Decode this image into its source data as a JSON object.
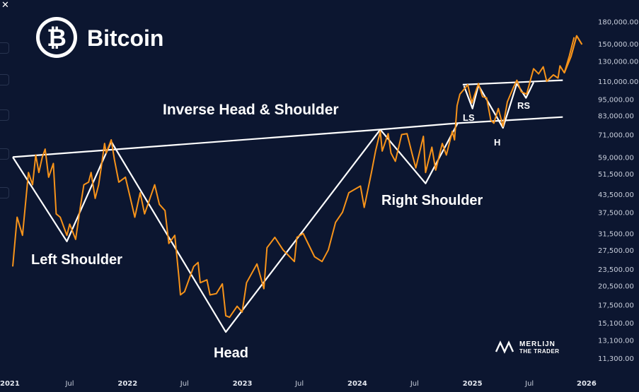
{
  "chart_data": {
    "type": "line",
    "title": "Bitcoin",
    "y_scale": "log",
    "ylim": [
      10000,
      205000
    ],
    "y_ticks": [
      "180,000.00",
      "150,000.00",
      "130,000.00",
      "110,000.00",
      "95,000.00",
      "83,000.00",
      "71,000.00",
      "59,000.00",
      "51,500.00",
      "43,500.00",
      "37,500.00",
      "31,500.00",
      "27,500.00",
      "23,500.00",
      "20,500.00",
      "17,500.00",
      "15,100.00",
      "13,100.00",
      "11,300.00"
    ],
    "y_tick_values": [
      180000,
      150000,
      130000,
      110000,
      95000,
      83000,
      71000,
      59000,
      51500,
      43500,
      37500,
      31500,
      27500,
      23500,
      20500,
      17500,
      15100,
      13100,
      11300
    ],
    "x_ticks": [
      {
        "label": "2021",
        "date": "2021-01-01",
        "major": true
      },
      {
        "label": "Jul",
        "date": "2021-07-01",
        "major": false
      },
      {
        "label": "2022",
        "date": "2022-01-01",
        "major": true
      },
      {
        "label": "Jul",
        "date": "2022-07-01",
        "major": false
      },
      {
        "label": "2023",
        "date": "2023-01-01",
        "major": true
      },
      {
        "label": "Jul",
        "date": "2023-07-01",
        "major": false
      },
      {
        "label": "2024",
        "date": "2024-01-01",
        "major": true
      },
      {
        "label": "Jul",
        "date": "2024-07-01",
        "major": false
      },
      {
        "label": "2025",
        "date": "2025-01-01",
        "major": true
      },
      {
        "label": "Jul",
        "date": "2025-07-01",
        "major": false
      },
      {
        "label": "2026",
        "date": "2026-01-01",
        "major": true
      }
    ],
    "series": [
      {
        "color": "#f7931a",
        "points": [
          [
            "2021-01-01",
            24000
          ],
          [
            "2021-01-15",
            36000
          ],
          [
            "2021-02-01",
            31000
          ],
          [
            "2021-02-20",
            52000
          ],
          [
            "2021-03-05",
            47000
          ],
          [
            "2021-03-15",
            60000
          ],
          [
            "2021-03-25",
            52000
          ],
          [
            "2021-04-05",
            59000
          ],
          [
            "2021-04-14",
            63000
          ],
          [
            "2021-04-25",
            50000
          ],
          [
            "2021-05-10",
            56000
          ],
          [
            "2021-05-19",
            37000
          ],
          [
            "2021-06-01",
            36000
          ],
          [
            "2021-06-22",
            31000
          ],
          [
            "2021-07-01",
            34000
          ],
          [
            "2021-07-20",
            30000
          ],
          [
            "2021-08-05",
            40000
          ],
          [
            "2021-08-15",
            47000
          ],
          [
            "2021-08-30",
            48000
          ],
          [
            "2021-09-07",
            52000
          ],
          [
            "2021-09-20",
            42000
          ],
          [
            "2021-10-01",
            47000
          ],
          [
            "2021-10-10",
            55000
          ],
          [
            "2021-10-20",
            66000
          ],
          [
            "2021-10-25",
            61000
          ],
          [
            "2021-11-10",
            68000
          ],
          [
            "2021-11-20",
            58000
          ],
          [
            "2021-12-04",
            48000
          ],
          [
            "2021-12-25",
            50000
          ],
          [
            "2022-01-10",
            42000
          ],
          [
            "2022-01-24",
            36000
          ],
          [
            "2022-02-10",
            44000
          ],
          [
            "2022-02-24",
            37000
          ],
          [
            "2022-03-28",
            47000
          ],
          [
            "2022-04-12",
            40000
          ],
          [
            "2022-04-30",
            38000
          ],
          [
            "2022-05-12",
            29000
          ],
          [
            "2022-05-31",
            31000
          ],
          [
            "2022-06-13",
            22000
          ],
          [
            "2022-06-18",
            19000
          ],
          [
            "2022-07-01",
            19500
          ],
          [
            "2022-07-30",
            24000
          ],
          [
            "2022-08-13",
            24800
          ],
          [
            "2022-08-20",
            21000
          ],
          [
            "2022-09-10",
            21500
          ],
          [
            "2022-09-20",
            19000
          ],
          [
            "2022-10-10",
            19200
          ],
          [
            "2022-10-29",
            20800
          ],
          [
            "2022-11-09",
            16000
          ],
          [
            "2022-11-21",
            15800
          ],
          [
            "2022-12-15",
            17300
          ],
          [
            "2022-12-31",
            16500
          ],
          [
            "2023-01-14",
            21000
          ],
          [
            "2023-02-16",
            24500
          ],
          [
            "2023-03-10",
            20000
          ],
          [
            "2023-03-20",
            28000
          ],
          [
            "2023-04-14",
            30500
          ],
          [
            "2023-05-10",
            27500
          ],
          [
            "2023-06-15",
            25000
          ],
          [
            "2023-06-23",
            30500
          ],
          [
            "2023-07-13",
            31500
          ],
          [
            "2023-08-18",
            26000
          ],
          [
            "2023-09-11",
            25000
          ],
          [
            "2023-10-01",
            27500
          ],
          [
            "2023-10-24",
            34500
          ],
          [
            "2023-11-15",
            37500
          ],
          [
            "2023-12-05",
            44000
          ],
          [
            "2024-01-11",
            46500
          ],
          [
            "2024-01-23",
            39000
          ],
          [
            "2024-02-15",
            52000
          ],
          [
            "2024-02-28",
            62000
          ],
          [
            "2024-03-14",
            73000
          ],
          [
            "2024-03-20",
            62000
          ],
          [
            "2024-04-08",
            71500
          ],
          [
            "2024-04-17",
            61000
          ],
          [
            "2024-05-01",
            57000
          ],
          [
            "2024-05-21",
            71000
          ],
          [
            "2024-06-07",
            71500
          ],
          [
            "2024-06-24",
            60000
          ],
          [
            "2024-07-05",
            54000
          ],
          [
            "2024-07-29",
            70000
          ],
          [
            "2024-08-05",
            52000
          ],
          [
            "2024-08-25",
            64000
          ],
          [
            "2024-09-06",
            53000
          ],
          [
            "2024-09-27",
            66000
          ],
          [
            "2024-10-10",
            60000
          ],
          [
            "2024-10-29",
            73000
          ],
          [
            "2024-11-05",
            68000
          ],
          [
            "2024-11-13",
            90000
          ],
          [
            "2024-11-22",
            99000
          ],
          [
            "2024-12-05",
            103000
          ],
          [
            "2024-12-17",
            107000
          ],
          [
            "2024-12-30",
            92000
          ],
          [
            "2025-01-20",
            108000
          ],
          [
            "2025-02-02",
            97000
          ],
          [
            "2025-02-15",
            96000
          ],
          [
            "2025-02-28",
            80000
          ],
          [
            "2025-03-10",
            78000
          ],
          [
            "2025-03-24",
            88000
          ],
          [
            "2025-04-08",
            76000
          ],
          [
            "2025-04-22",
            93000
          ],
          [
            "2025-05-10",
            104000
          ],
          [
            "2025-05-22",
            111000
          ],
          [
            "2025-06-05",
            101000
          ],
          [
            "2025-06-22",
            99000
          ],
          [
            "2025-07-14",
            122000
          ],
          [
            "2025-07-30",
            117000
          ],
          [
            "2025-08-14",
            124000
          ],
          [
            "2025-08-25",
            110000
          ],
          [
            "2025-09-15",
            116000
          ],
          [
            "2025-09-30",
            113000
          ],
          [
            "2025-10-06",
            125000
          ],
          [
            "2025-10-20",
            118000
          ],
          [
            "2025-11-05",
            136000
          ],
          [
            "2025-11-20",
            158000
          ]
        ]
      }
    ],
    "overlay_lines": [
      {
        "name": "neckline",
        "points": [
          [
            "2021-01-01",
            59000
          ],
          [
            "2024-03-14",
            74000
          ],
          [
            "2024-11-15",
            78000
          ],
          [
            "2025-10-15",
            82000
          ]
        ]
      },
      {
        "name": "left-shoulder-v",
        "points": [
          [
            "2021-01-01",
            59000
          ],
          [
            "2021-06-22",
            29500
          ],
          [
            "2021-11-10",
            67000
          ]
        ]
      },
      {
        "name": "head-v",
        "points": [
          [
            "2021-11-10",
            67000
          ],
          [
            "2022-11-09",
            14000
          ],
          [
            "2024-03-14",
            74000
          ]
        ]
      },
      {
        "name": "right-shoulder-v",
        "points": [
          [
            "2024-03-14",
            74000
          ],
          [
            "2024-08-05",
            47500
          ],
          [
            "2024-11-15",
            78000
          ]
        ]
      },
      {
        "name": "small-neckline",
        "points": [
          [
            "2024-12-01",
            107000
          ],
          [
            "2025-10-15",
            111000
          ]
        ]
      },
      {
        "name": "small-ls",
        "points": [
          [
            "2024-12-05",
            106000
          ],
          [
            "2025-01-01",
            88000
          ],
          [
            "2025-01-20",
            106500
          ]
        ]
      },
      {
        "name": "small-h",
        "points": [
          [
            "2025-01-20",
            106500
          ],
          [
            "2025-04-08",
            75000
          ],
          [
            "2025-05-22",
            108000
          ]
        ]
      },
      {
        "name": "small-rs",
        "points": [
          [
            "2025-05-22",
            108000
          ],
          [
            "2025-06-20",
            96000
          ],
          [
            "2025-07-14",
            109000
          ]
        ]
      }
    ],
    "arrow_points": [
      [
        "2025-10-20",
        118000
      ],
      [
        "2025-11-10",
        135000
      ],
      [
        "2025-11-28",
        160000
      ],
      [
        "2025-12-15",
        149000
      ]
    ],
    "annotations": [
      {
        "name": "pattern-title",
        "text": "Inverse Head & Shoulder"
      },
      {
        "name": "left-shoulder-label",
        "text": "Left Shoulder"
      },
      {
        "name": "head-label",
        "text": "Head"
      },
      {
        "name": "right-shoulder-label",
        "text": "Right Shoulder"
      },
      {
        "name": "ls-label",
        "text": "LS"
      },
      {
        "name": "h-label",
        "text": "H"
      },
      {
        "name": "rs-label",
        "text": "RS"
      }
    ],
    "grid": false,
    "watermark": {
      "line1": "MERLIJN",
      "line2": "THE TRADER"
    }
  },
  "colors": {
    "background": "#0c1630",
    "price_line": "#f7931a",
    "pattern_lines": "#ffffff",
    "logo_orange": "#ffffff"
  },
  "icons": [
    "bitcoin-logo-icon",
    "close-icon",
    "merlijn-logo-icon",
    "arrow-up-icon"
  ]
}
